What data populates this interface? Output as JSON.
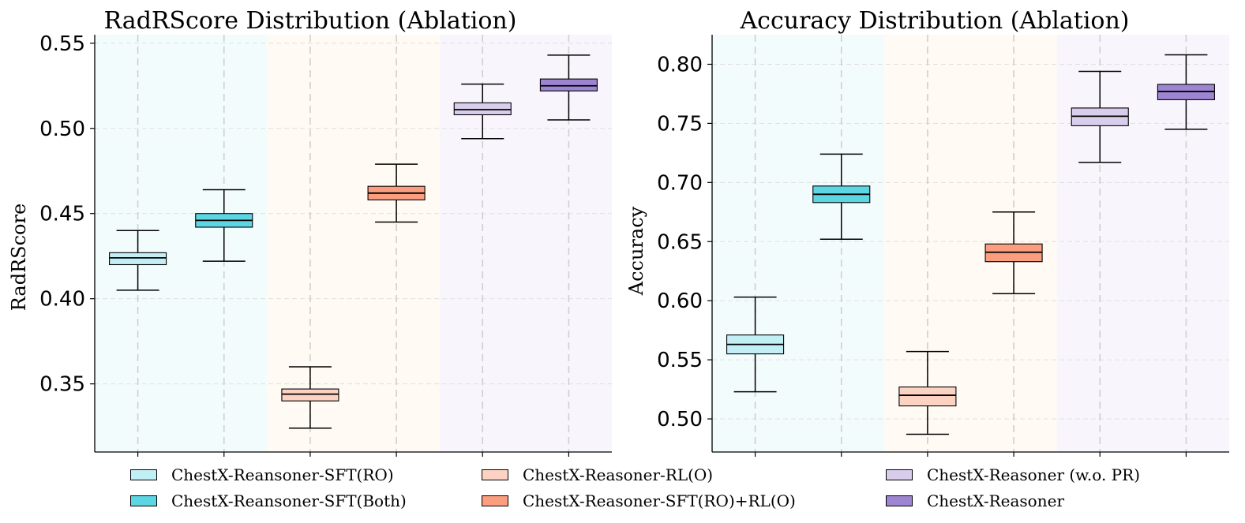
{
  "chart_data": [
    {
      "type": "boxplot",
      "title": "RadRScore Distribution (Ablation)",
      "xlabel": "",
      "ylabel": "RadRScore",
      "ylim": [
        0.31,
        0.555
      ],
      "yticks": [
        0.35,
        0.4,
        0.45,
        0.5,
        0.55
      ],
      "ytick_labels": [
        "0.35",
        "0.40",
        "0.45",
        "0.50",
        "0.55"
      ],
      "grid": true,
      "series": [
        {
          "name": "ChestX-Reansoner-SFT(RO)",
          "color": "#c2eff5",
          "whisker_low": 0.405,
          "q1": 0.42,
          "median": 0.424,
          "q3": 0.427,
          "whisker_high": 0.44
        },
        {
          "name": "ChestX-Reansoner-SFT(Both)",
          "color": "#5dd6e4",
          "whisker_low": 0.422,
          "q1": 0.442,
          "median": 0.446,
          "q3": 0.45,
          "whisker_high": 0.464
        },
        {
          "name": "ChestX-Reasoner-RL(O)",
          "color": "#fcd3c3",
          "whisker_low": 0.324,
          "q1": 0.34,
          "median": 0.344,
          "q3": 0.347,
          "whisker_high": 0.36
        },
        {
          "name": "ChestX-Reasoner-SFT(RO)+RL(O)",
          "color": "#fb9e80",
          "whisker_low": 0.445,
          "q1": 0.458,
          "median": 0.462,
          "q3": 0.466,
          "whisker_high": 0.479
        },
        {
          "name": "ChestX-Reasoner (w.o. PR)",
          "color": "#d8cdeb",
          "whisker_low": 0.494,
          "q1": 0.508,
          "median": 0.511,
          "q3": 0.515,
          "whisker_high": 0.526
        },
        {
          "name": "ChestX-Reasoner",
          "color": "#9d85d1",
          "whisker_low": 0.505,
          "q1": 0.522,
          "median": 0.525,
          "q3": 0.529,
          "whisker_high": 0.543
        }
      ]
    },
    {
      "type": "boxplot",
      "title": "Accuracy Distribution (Ablation)",
      "xlabel": "",
      "ylabel": "Accuracy",
      "ylim": [
        0.472,
        0.825
      ],
      "yticks": [
        0.5,
        0.55,
        0.6,
        0.65,
        0.7,
        0.75,
        0.8
      ],
      "ytick_labels": [
        "0.50",
        "0.55",
        "0.60",
        "0.65",
        "0.70",
        "0.75",
        "0.80"
      ],
      "grid": true,
      "series": [
        {
          "name": "ChestX-Reansoner-SFT(RO)",
          "color": "#c2eff5",
          "whisker_low": 0.523,
          "q1": 0.555,
          "median": 0.563,
          "q3": 0.571,
          "whisker_high": 0.603
        },
        {
          "name": "ChestX-Reansoner-SFT(Both)",
          "color": "#5dd6e4",
          "whisker_low": 0.652,
          "q1": 0.683,
          "median": 0.69,
          "q3": 0.697,
          "whisker_high": 0.724
        },
        {
          "name": "ChestX-Reasoner-RL(O)",
          "color": "#fcd3c3",
          "whisker_low": 0.487,
          "q1": 0.511,
          "median": 0.52,
          "q3": 0.527,
          "whisker_high": 0.557
        },
        {
          "name": "ChestX-Reasoner-SFT(RO)+RL(O)",
          "color": "#fb9e80",
          "whisker_low": 0.606,
          "q1": 0.633,
          "median": 0.641,
          "q3": 0.648,
          "whisker_high": 0.675
        },
        {
          "name": "ChestX-Reasoner (w.o. PR)",
          "color": "#d8cdeb",
          "whisker_low": 0.717,
          "q1": 0.748,
          "median": 0.756,
          "q3": 0.763,
          "whisker_high": 0.794
        },
        {
          "name": "ChestX-Reasoner",
          "color": "#9d85d1",
          "whisker_low": 0.745,
          "q1": 0.77,
          "median": 0.777,
          "q3": 0.783,
          "whisker_high": 0.808
        }
      ]
    }
  ],
  "background_groups": [
    {
      "color": "#f3fcfc"
    },
    {
      "color": "#fffaf3"
    },
    {
      "color": "#f8f6fc"
    }
  ],
  "legend": {
    "placement": "bottom",
    "items": [
      {
        "label": "ChestX-Reansoner-SFT(RO)",
        "color": "#c2eff5"
      },
      {
        "label": "ChestX-Reansoner-SFT(Both)",
        "color": "#5dd6e4"
      },
      {
        "label": "ChestX-Reasoner-RL(O)",
        "color": "#fcd3c3"
      },
      {
        "label": "ChestX-Reasoner-SFT(RO)+RL(O)",
        "color": "#fb9e80"
      },
      {
        "label": "ChestX-Reasoner (w.o. PR)",
        "color": "#d8cdeb"
      },
      {
        "label": "ChestX-Reasoner",
        "color": "#9d85d1"
      }
    ]
  }
}
